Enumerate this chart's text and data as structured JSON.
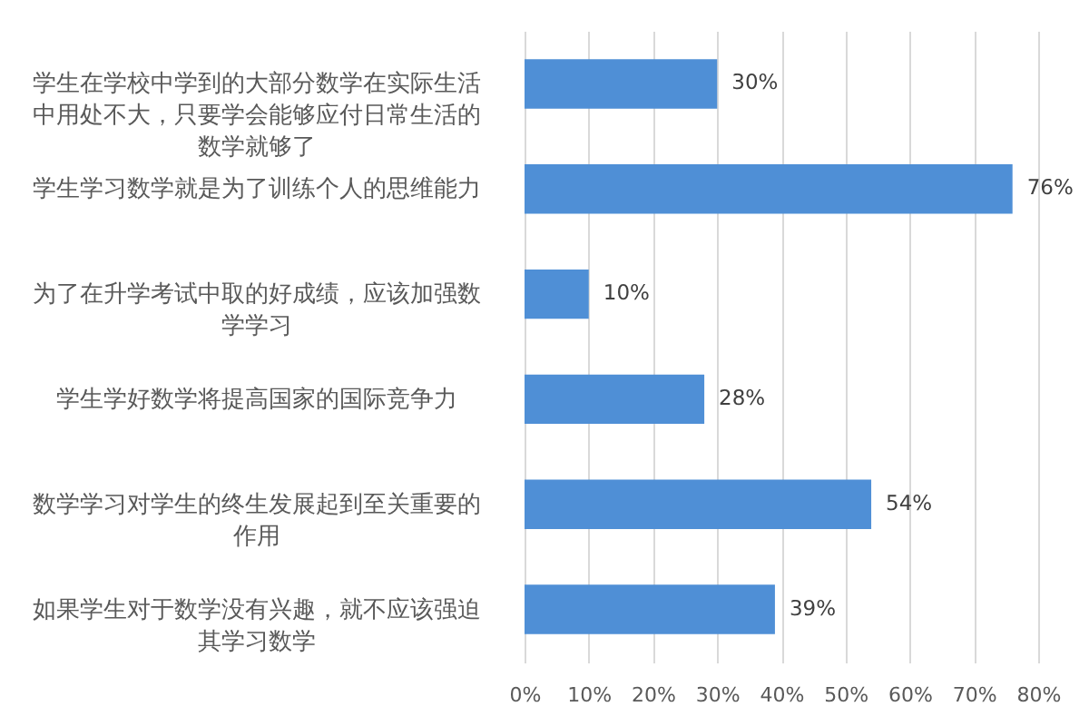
{
  "chart_data": {
    "type": "bar",
    "orientation": "horizontal",
    "categories": [
      "学生在学校中学到的大部分数学在实际生活中用处不大，只要学会能够应付日常生活的数学就够了",
      "学生学习数学就是为了训练个人的思维能力",
      "为了在升学考试中取的好成绩，应该加强数学学习",
      "学生学好数学将提高国家的国际竞争力",
      "数学学习对学生的终生发展起到至关重要的作用",
      "如果学生对于数学没有兴趣，就不应该强迫其学习数学"
    ],
    "values": [
      30,
      76,
      10,
      28,
      54,
      39
    ],
    "value_labels": [
      "30%",
      "76%",
      "10%",
      "28%",
      "54%",
      "39%"
    ],
    "color": "#4f8fd6",
    "xlim": [
      0,
      80
    ],
    "xticks": [
      {
        "value": 0,
        "label": "0%"
      },
      {
        "value": 10,
        "label": "10%"
      },
      {
        "value": 20,
        "label": "20%"
      },
      {
        "value": 30,
        "label": "30%"
      },
      {
        "value": 40,
        "label": "40%"
      },
      {
        "value": 50,
        "label": "50%"
      },
      {
        "value": 60,
        "label": "60%"
      },
      {
        "value": 70,
        "label": "70%"
      },
      {
        "value": 80,
        "label": "80%"
      }
    ],
    "grid": "x"
  }
}
